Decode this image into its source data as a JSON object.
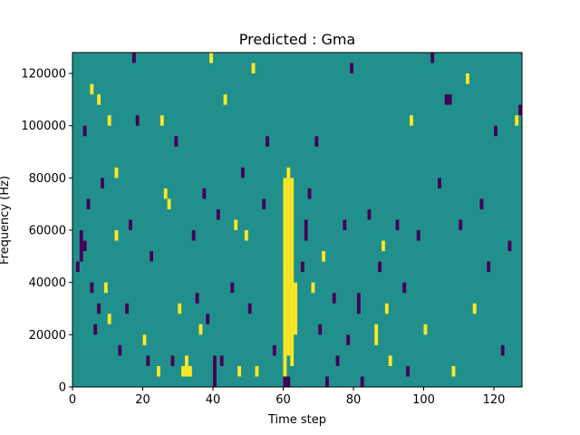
{
  "chart_data": {
    "type": "heatmap",
    "title": "Predicted : Gma",
    "xlabel": "Time step",
    "ylabel": "Frequency (Hz)",
    "xlim": [
      0,
      128
    ],
    "ylim": [
      0,
      128000
    ],
    "xticks": [
      0,
      20,
      40,
      60,
      80,
      100,
      120
    ],
    "yticks": [
      0,
      20000,
      40000,
      60000,
      80000,
      100000,
      120000
    ],
    "xtick_labels": [
      "0",
      "20",
      "40",
      "60",
      "80",
      "100",
      "120"
    ],
    "ytick_labels": [
      "0",
      "20000",
      "40000",
      "60000",
      "80000",
      "100000",
      "120000"
    ],
    "colors": {
      "background": "#21908d",
      "high": "#fde725",
      "low": "#440154"
    },
    "grid": false,
    "cell_height_hz": 4000,
    "cells": [
      {
        "x": 60,
        "y0": 4000,
        "y1": 80000,
        "level": "high"
      },
      {
        "x": 61,
        "y0": 12000,
        "y1": 84000,
        "level": "high"
      },
      {
        "x": 62,
        "y0": 8000,
        "y1": 80000,
        "level": "high"
      },
      {
        "x": 63,
        "y0": 20000,
        "y1": 40000,
        "level": "high"
      },
      {
        "x": 60,
        "y0": 0,
        "y1": 4000,
        "level": "low"
      },
      {
        "x": 61,
        "y0": 0,
        "y1": 4000,
        "level": "low"
      },
      {
        "x": 32,
        "y0": 4000,
        "y1": 12000,
        "level": "high"
      },
      {
        "x": 31,
        "y0": 4000,
        "y1": 8000,
        "level": "high"
      },
      {
        "x": 33,
        "y0": 4000,
        "y1": 8000,
        "level": "high"
      },
      {
        "x": 40,
        "y0": 0,
        "y1": 12000,
        "level": "low"
      },
      {
        "x": 1,
        "y0": 44000,
        "y1": 48000,
        "level": "low"
      },
      {
        "x": 2,
        "y0": 48000,
        "y1": 60000,
        "level": "low"
      },
      {
        "x": 3,
        "y0": 52000,
        "y1": 56000,
        "level": "low"
      },
      {
        "x": 6,
        "y0": 20000,
        "y1": 24000,
        "level": "low"
      },
      {
        "x": 7,
        "y0": 28000,
        "y1": 32000,
        "level": "low"
      },
      {
        "x": 5,
        "y0": 36000,
        "y1": 40000,
        "level": "low"
      },
      {
        "x": 4,
        "y0": 68000,
        "y1": 72000,
        "level": "low"
      },
      {
        "x": 8,
        "y0": 76000,
        "y1": 80000,
        "level": "low"
      },
      {
        "x": 3,
        "y0": 96000,
        "y1": 100000,
        "level": "low"
      },
      {
        "x": 7,
        "y0": 108000,
        "y1": 112000,
        "level": "high"
      },
      {
        "x": 5,
        "y0": 112000,
        "y1": 116000,
        "level": "high"
      },
      {
        "x": 10,
        "y0": 100000,
        "y1": 104000,
        "level": "high"
      },
      {
        "x": 9,
        "y0": 36000,
        "y1": 40000,
        "level": "high"
      },
      {
        "x": 10,
        "y0": 24000,
        "y1": 28000,
        "level": "high"
      },
      {
        "x": 12,
        "y0": 56000,
        "y1": 60000,
        "level": "high"
      },
      {
        "x": 12,
        "y0": 80000,
        "y1": 84000,
        "level": "high"
      },
      {
        "x": 13,
        "y0": 12000,
        "y1": 16000,
        "level": "low"
      },
      {
        "x": 15,
        "y0": 28000,
        "y1": 32000,
        "level": "low"
      },
      {
        "x": 16,
        "y0": 60000,
        "y1": 64000,
        "level": "low"
      },
      {
        "x": 17,
        "y0": 124000,
        "y1": 128000,
        "level": "low"
      },
      {
        "x": 18,
        "y0": 100000,
        "y1": 104000,
        "level": "low"
      },
      {
        "x": 20,
        "y0": 16000,
        "y1": 20000,
        "level": "high"
      },
      {
        "x": 21,
        "y0": 8000,
        "y1": 12000,
        "level": "low"
      },
      {
        "x": 22,
        "y0": 48000,
        "y1": 52000,
        "level": "low"
      },
      {
        "x": 24,
        "y0": 4000,
        "y1": 8000,
        "level": "high"
      },
      {
        "x": 25,
        "y0": 100000,
        "y1": 104000,
        "level": "high"
      },
      {
        "x": 26,
        "y0": 72000,
        "y1": 76000,
        "level": "high"
      },
      {
        "x": 27,
        "y0": 68000,
        "y1": 72000,
        "level": "high"
      },
      {
        "x": 28,
        "y0": 8000,
        "y1": 12000,
        "level": "low"
      },
      {
        "x": 29,
        "y0": 92000,
        "y1": 96000,
        "level": "low"
      },
      {
        "x": 30,
        "y0": 28000,
        "y1": 32000,
        "level": "high"
      },
      {
        "x": 34,
        "y0": 56000,
        "y1": 60000,
        "level": "low"
      },
      {
        "x": 35,
        "y0": 32000,
        "y1": 36000,
        "level": "low"
      },
      {
        "x": 36,
        "y0": 20000,
        "y1": 24000,
        "level": "high"
      },
      {
        "x": 37,
        "y0": 72000,
        "y1": 76000,
        "level": "low"
      },
      {
        "x": 38,
        "y0": 24000,
        "y1": 28000,
        "level": "low"
      },
      {
        "x": 39,
        "y0": 124000,
        "y1": 128000,
        "level": "high"
      },
      {
        "x": 41,
        "y0": 64000,
        "y1": 68000,
        "level": "low"
      },
      {
        "x": 42,
        "y0": 8000,
        "y1": 12000,
        "level": "low"
      },
      {
        "x": 43,
        "y0": 108000,
        "y1": 112000,
        "level": "high"
      },
      {
        "x": 45,
        "y0": 36000,
        "y1": 40000,
        "level": "low"
      },
      {
        "x": 46,
        "y0": 60000,
        "y1": 64000,
        "level": "high"
      },
      {
        "x": 47,
        "y0": 4000,
        "y1": 8000,
        "level": "high"
      },
      {
        "x": 48,
        "y0": 80000,
        "y1": 84000,
        "level": "low"
      },
      {
        "x": 49,
        "y0": 56000,
        "y1": 60000,
        "level": "high"
      },
      {
        "x": 50,
        "y0": 28000,
        "y1": 32000,
        "level": "low"
      },
      {
        "x": 51,
        "y0": 120000,
        "y1": 124000,
        "level": "high"
      },
      {
        "x": 52,
        "y0": 4000,
        "y1": 8000,
        "level": "high"
      },
      {
        "x": 54,
        "y0": 68000,
        "y1": 72000,
        "level": "low"
      },
      {
        "x": 55,
        "y0": 92000,
        "y1": 96000,
        "level": "low"
      },
      {
        "x": 57,
        "y0": 12000,
        "y1": 16000,
        "level": "low"
      },
      {
        "x": 65,
        "y0": 44000,
        "y1": 48000,
        "level": "low"
      },
      {
        "x": 66,
        "y0": 56000,
        "y1": 64000,
        "level": "low"
      },
      {
        "x": 67,
        "y0": 72000,
        "y1": 76000,
        "level": "low"
      },
      {
        "x": 68,
        "y0": 36000,
        "y1": 40000,
        "level": "high"
      },
      {
        "x": 69,
        "y0": 92000,
        "y1": 96000,
        "level": "low"
      },
      {
        "x": 70,
        "y0": 20000,
        "y1": 24000,
        "level": "low"
      },
      {
        "x": 71,
        "y0": 48000,
        "y1": 52000,
        "level": "high"
      },
      {
        "x": 72,
        "y0": 0,
        "y1": 4000,
        "level": "low"
      },
      {
        "x": 74,
        "y0": 32000,
        "y1": 36000,
        "level": "low"
      },
      {
        "x": 75,
        "y0": 8000,
        "y1": 12000,
        "level": "low"
      },
      {
        "x": 77,
        "y0": 60000,
        "y1": 64000,
        "level": "low"
      },
      {
        "x": 78,
        "y0": 16000,
        "y1": 20000,
        "level": "low"
      },
      {
        "x": 79,
        "y0": 120000,
        "y1": 124000,
        "level": "low"
      },
      {
        "x": 81,
        "y0": 28000,
        "y1": 36000,
        "level": "low"
      },
      {
        "x": 82,
        "y0": 0,
        "y1": 4000,
        "level": "low"
      },
      {
        "x": 84,
        "y0": 64000,
        "y1": 68000,
        "level": "low"
      },
      {
        "x": 86,
        "y0": 16000,
        "y1": 24000,
        "level": "high"
      },
      {
        "x": 87,
        "y0": 44000,
        "y1": 48000,
        "level": "low"
      },
      {
        "x": 88,
        "y0": 52000,
        "y1": 56000,
        "level": "high"
      },
      {
        "x": 89,
        "y0": 28000,
        "y1": 32000,
        "level": "high"
      },
      {
        "x": 90,
        "y0": 8000,
        "y1": 12000,
        "level": "high"
      },
      {
        "x": 92,
        "y0": 60000,
        "y1": 64000,
        "level": "low"
      },
      {
        "x": 94,
        "y0": 36000,
        "y1": 40000,
        "level": "low"
      },
      {
        "x": 95,
        "y0": 4000,
        "y1": 8000,
        "level": "low"
      },
      {
        "x": 96,
        "y0": 100000,
        "y1": 104000,
        "level": "high"
      },
      {
        "x": 98,
        "y0": 56000,
        "y1": 60000,
        "level": "low"
      },
      {
        "x": 100,
        "y0": 20000,
        "y1": 24000,
        "level": "high"
      },
      {
        "x": 102,
        "y0": 124000,
        "y1": 128000,
        "level": "low"
      },
      {
        "x": 104,
        "y0": 76000,
        "y1": 80000,
        "level": "low"
      },
      {
        "x": 106,
        "y0": 108000,
        "y1": 112000,
        "level": "low"
      },
      {
        "x": 107,
        "y0": 108000,
        "y1": 112000,
        "level": "low"
      },
      {
        "x": 108,
        "y0": 4000,
        "y1": 8000,
        "level": "high"
      },
      {
        "x": 110,
        "y0": 60000,
        "y1": 64000,
        "level": "low"
      },
      {
        "x": 112,
        "y0": 116000,
        "y1": 120000,
        "level": "high"
      },
      {
        "x": 114,
        "y0": 28000,
        "y1": 32000,
        "level": "high"
      },
      {
        "x": 116,
        "y0": 68000,
        "y1": 72000,
        "level": "low"
      },
      {
        "x": 118,
        "y0": 44000,
        "y1": 48000,
        "level": "low"
      },
      {
        "x": 120,
        "y0": 96000,
        "y1": 100000,
        "level": "low"
      },
      {
        "x": 122,
        "y0": 12000,
        "y1": 16000,
        "level": "low"
      },
      {
        "x": 124,
        "y0": 52000,
        "y1": 56000,
        "level": "low"
      },
      {
        "x": 126,
        "y0": 100000,
        "y1": 104000,
        "level": "high"
      },
      {
        "x": 127,
        "y0": 104000,
        "y1": 108000,
        "level": "low"
      }
    ]
  }
}
